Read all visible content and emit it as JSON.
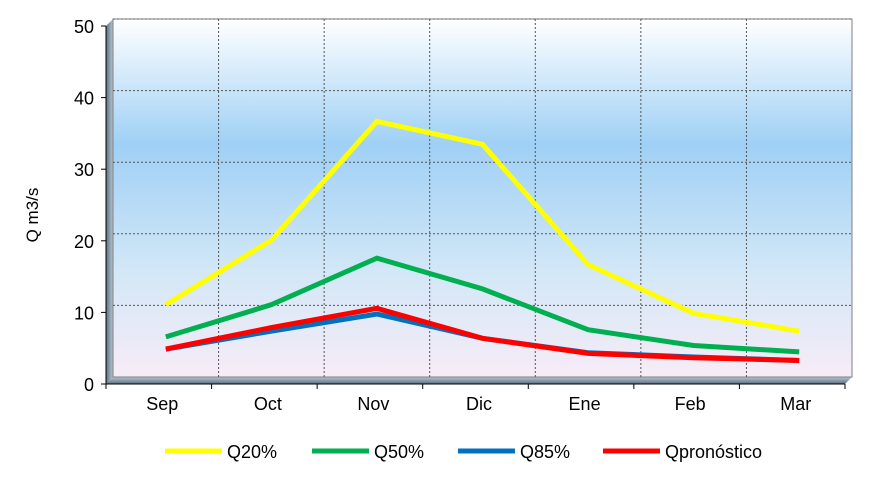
{
  "chart_data": {
    "type": "line",
    "title": "",
    "xlabel": "",
    "ylabel": "Q m3/s",
    "ylim": [
      0,
      50
    ],
    "yticks": [
      0,
      10,
      20,
      30,
      40,
      50
    ],
    "grid": true,
    "legend_position": "bottom",
    "categories": [
      "Sep",
      "Oct",
      "Nov",
      "Dic",
      "Ene",
      "Feb",
      "Mar"
    ],
    "series": [
      {
        "name": "Q20%",
        "color": "#ffff00",
        "values": [
          10.1,
          19.1,
          35.7,
          32.5,
          15.7,
          8.9,
          6.4
        ]
      },
      {
        "name": "Q50%",
        "color": "#00b050",
        "values": [
          5.6,
          10.1,
          16.6,
          12.3,
          6.6,
          4.4,
          3.5
        ]
      },
      {
        "name": "Q85%",
        "color": "#0070c0",
        "values": [
          3.9,
          6.4,
          8.8,
          5.4,
          3.4,
          2.8,
          2.3
        ]
      },
      {
        "name": "Qpronóstico",
        "color": "#ff0000",
        "values": [
          3.9,
          6.9,
          9.6,
          5.4,
          3.3,
          2.7,
          2.3
        ]
      }
    ]
  }
}
